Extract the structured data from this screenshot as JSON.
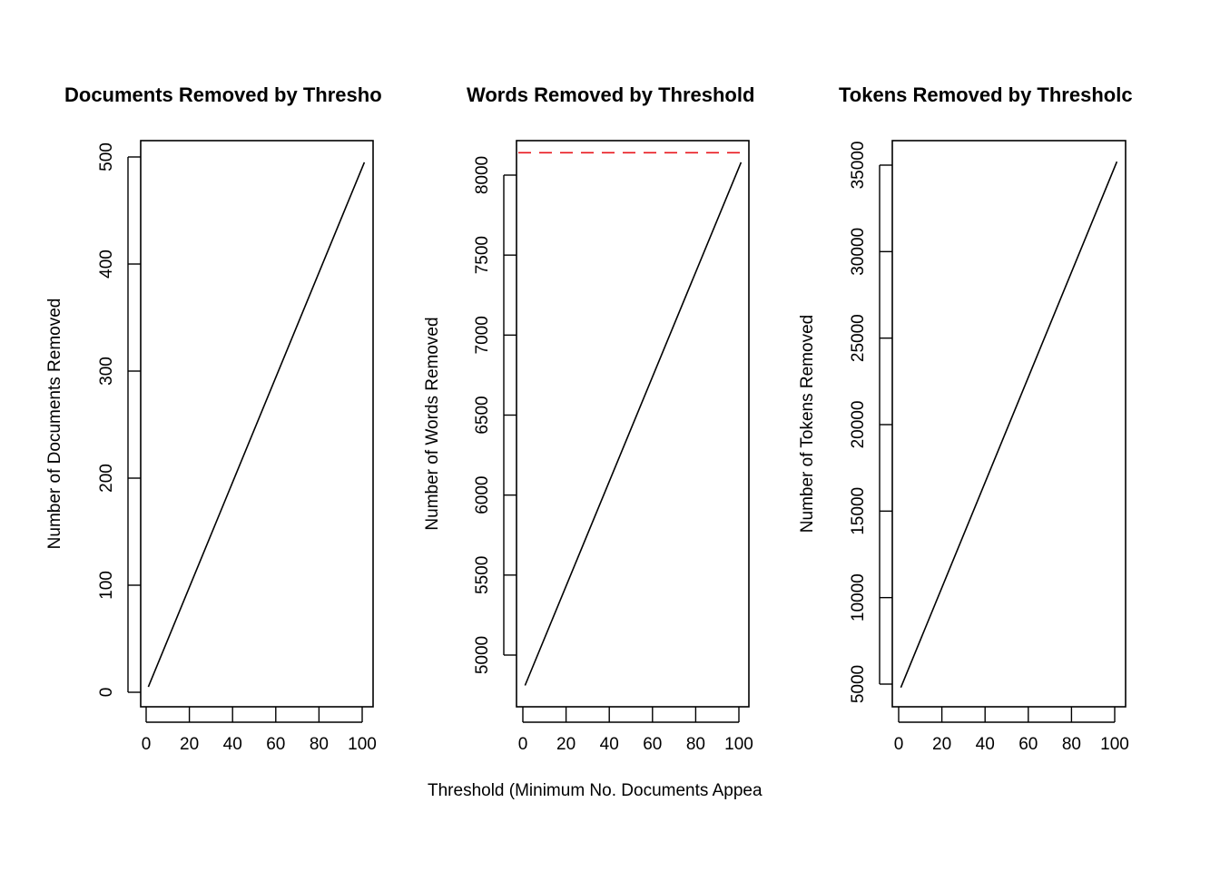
{
  "chart_data": [
    {
      "type": "line",
      "title": "Documents Removed by Thresho",
      "xlabel": "",
      "ylabel": "Number of Documents Removed",
      "xlim": [
        1,
        100
      ],
      "ylim": [
        0,
        500
      ],
      "xticks": [
        "0",
        "20",
        "40",
        "60",
        "80",
        "100"
      ],
      "yticks": [
        "0",
        "100",
        "200",
        "300",
        "400",
        "500"
      ],
      "series": [
        {
          "x": [
            1,
            101
          ],
          "y": [
            5,
            495
          ]
        }
      ],
      "hline": null
    },
    {
      "type": "line",
      "title": "Words Removed by Threshold",
      "xlabel": "Threshold (Minimum No. Documents Appea",
      "ylabel": "Number of Words Removed",
      "xlim": [
        1,
        100
      ],
      "ylim": [
        4700,
        8150
      ],
      "xticks": [
        "0",
        "20",
        "40",
        "60",
        "80",
        "100"
      ],
      "yticks": [
        "5000",
        "5500",
        "6000",
        "6500",
        "7000",
        "7500",
        "8000"
      ],
      "series": [
        {
          "x": [
            1,
            101
          ],
          "y": [
            4810,
            8080
          ]
        }
      ],
      "hline": {
        "y": 8140,
        "color": "#e8141b",
        "style": "dashed"
      }
    },
    {
      "type": "line",
      "title": "Tokens Removed by Thresholc",
      "xlabel": "",
      "ylabel": "Number of Tokens Removed",
      "xlim": [
        1,
        100
      ],
      "ylim": [
        3700,
        36400
      ],
      "xticks": [
        "0",
        "20",
        "40",
        "60",
        "80",
        "100"
      ],
      "yticks": [
        "5000",
        "10000",
        "15000",
        "20000",
        "25000",
        "30000",
        "35000"
      ],
      "series": [
        {
          "x": [
            1,
            101
          ],
          "y": [
            4800,
            35200
          ]
        }
      ],
      "hline": null
    }
  ]
}
